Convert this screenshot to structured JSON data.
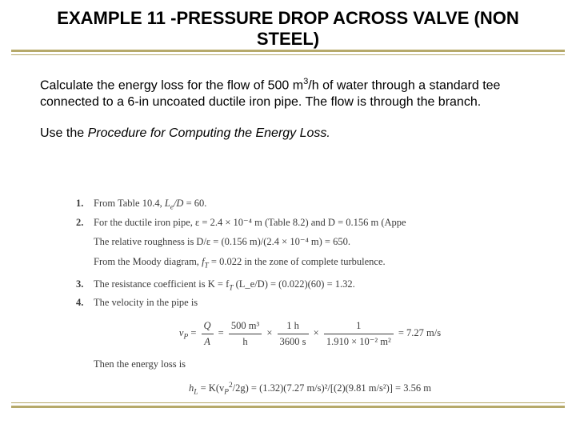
{
  "title": "EXAMPLE 11 -PRESSURE DROP ACROSS VALVE (NON STEEL)",
  "paragraph1_a": "Calculate the energy loss for the flow of 500 m",
  "paragraph1_sup": "3",
  "paragraph1_b": "/h of water through a standard tee connected to a 6-in uncoated ductile iron pipe. The flow is through the branch.",
  "paragraph2_a": "Use the ",
  "paragraph2_italic": "Procedure for Computing the Energy Loss.",
  "steps": {
    "n1": "1.",
    "s1": "From Table 10.4, L_e/D = 60.",
    "n2": "2.",
    "s2": "For the ductile iron pipe, ε = 2.4 × 10⁻⁴ m (Table 8.2) and D = 0.156 m (Appe",
    "s2b": "The relative roughness is D/ε = (0.156 m)/(2.4 × 10⁻⁴ m) = 650.",
    "s2c_a": "From the Moody diagram, ",
    "s2c_b": " = 0.022 in the zone of complete turbulence.",
    "n3": "3.",
    "s3_a": "The resistance coefficient is K = f",
    "s3_b": " (L_e/D) = (0.022)(60) = 1.32.",
    "n4": "4.",
    "s4": "The velocity in the pipe is",
    "eq": {
      "lhs_sub": "P",
      "eq1_num": "Q",
      "eq1_den": "A",
      "eq2_num": "500 m³",
      "eq2_den": "h",
      "eq3_num": "1 h",
      "eq3_den": "3600 s",
      "eq4_num": "1",
      "eq4_den": "1.910 × 10⁻² m²",
      "rhs": "= 7.27 m/s"
    },
    "then": "Then the energy loss is",
    "final_a": "h",
    "final_sub": "L",
    "final_b": " = K(v",
    "final_sup": "2",
    "final_subP": "P",
    "final_c": "/2g) = (1.32)(7.27 m/s)²/[(2)(9.81 m/s²)] = 3.56 m"
  },
  "colors": {
    "rule": "#b6a96a",
    "text": "#000000",
    "steps_text": "#3a3a3a",
    "background": "#ffffff"
  }
}
